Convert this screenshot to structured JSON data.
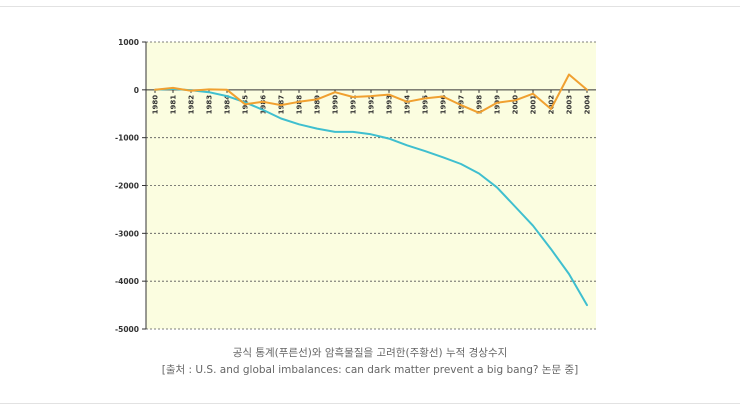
{
  "caption": {
    "line1": "공식 통계(푸른선)와 암흑물질을 고려한(주황선) 누적 경상수지",
    "line2": "[출처 : U.S. and global imbalances: can dark matter prevent a big bang? 논문 중]"
  },
  "chart_data": {
    "type": "line",
    "x": [
      "1980",
      "1981",
      "1982",
      "1983",
      "1984",
      "1985",
      "1986",
      "1987",
      "1988",
      "1989",
      "1990",
      "1991",
      "1992",
      "1993",
      "1994",
      "1995",
      "1996",
      "1997",
      "1998",
      "1999",
      "2000",
      "2001",
      "2002",
      "2003",
      "2004"
    ],
    "ylim": [
      -5000,
      1000
    ],
    "yticks": [
      1000,
      0,
      -1000,
      -2000,
      -3000,
      -4000,
      -5000
    ],
    "grid": true,
    "plot_background": "#fbfde0",
    "series": [
      {
        "color": "#3fbfcf",
        "values": [
          0,
          20,
          -10,
          -50,
          -130,
          -260,
          -420,
          -600,
          -720,
          -810,
          -880,
          -880,
          -930,
          -1020,
          -1160,
          -1280,
          -1410,
          -1550,
          -1750,
          -2040,
          -2440,
          -2840,
          -3330,
          -3850,
          -4500
        ]
      },
      {
        "color": "#f0a030",
        "values": [
          0,
          40,
          -20,
          10,
          0,
          -300,
          -250,
          -320,
          -250,
          -200,
          -50,
          -150,
          -130,
          -100,
          -250,
          -180,
          -140,
          -320,
          -480,
          -270,
          -220,
          -80,
          -400,
          320,
          0
        ]
      }
    ]
  }
}
